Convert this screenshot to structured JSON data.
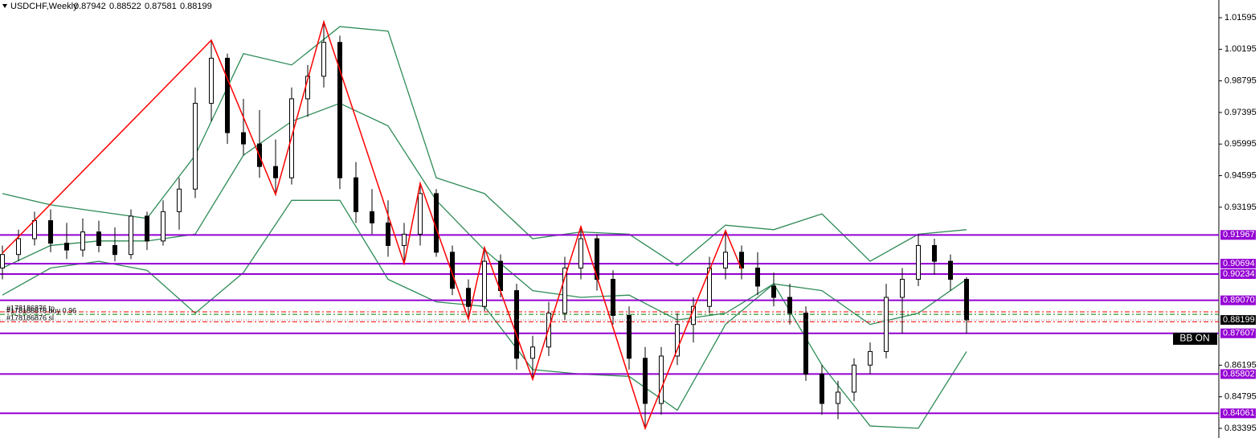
{
  "chart_data": {
    "type": "candlestick",
    "symbol": "USDCHF,Weekly",
    "quote": [
      0.87942,
      0.88522,
      0.87581,
      0.88199
    ],
    "ylim": [
      0.82968,
      1.02379
    ],
    "yticks": [
      1.01595,
      1.00195,
      0.98795,
      0.97395,
      0.95995,
      0.94595,
      0.93195,
      0.86195,
      0.84795,
      0.83395
    ],
    "ohlc": [
      [
        0.905,
        0.915,
        0.9,
        0.911
      ],
      [
        0.911,
        0.922,
        0.908,
        0.918
      ],
      [
        0.918,
        0.93,
        0.915,
        0.926
      ],
      [
        0.926,
        0.931,
        0.912,
        0.916
      ],
      [
        0.916,
        0.925,
        0.909,
        0.913
      ],
      [
        0.913,
        0.927,
        0.91,
        0.921
      ],
      [
        0.921,
        0.926,
        0.912,
        0.915
      ],
      [
        0.915,
        0.923,
        0.908,
        0.911
      ],
      [
        0.911,
        0.931,
        0.909,
        0.928
      ],
      [
        0.928,
        0.93,
        0.913,
        0.917
      ],
      [
        0.917,
        0.935,
        0.915,
        0.93
      ],
      [
        0.93,
        0.945,
        0.922,
        0.94
      ],
      [
        0.94,
        0.985,
        0.936,
        0.978
      ],
      [
        0.978,
        1.006,
        0.97,
        0.998
      ],
      [
        0.998,
        1.0,
        0.96,
        0.965
      ],
      [
        0.965,
        0.98,
        0.955,
        0.96
      ],
      [
        0.96,
        0.975,
        0.945,
        0.95
      ],
      [
        0.95,
        0.962,
        0.937,
        0.945
      ],
      [
        0.945,
        0.985,
        0.942,
        0.98
      ],
      [
        0.98,
        0.995,
        0.972,
        0.99
      ],
      [
        0.99,
        1.014,
        0.985,
        1.005
      ],
      [
        1.005,
        1.008,
        0.94,
        0.945
      ],
      [
        0.945,
        0.952,
        0.925,
        0.93
      ],
      [
        0.93,
        0.94,
        0.92,
        0.925
      ],
      [
        0.925,
        0.935,
        0.91,
        0.915
      ],
      [
        0.915,
        0.925,
        0.907,
        0.92
      ],
      [
        0.92,
        0.942,
        0.915,
        0.938
      ],
      [
        0.938,
        0.94,
        0.91,
        0.912
      ],
      [
        0.912,
        0.915,
        0.893,
        0.896
      ],
      [
        0.896,
        0.9,
        0.882,
        0.888
      ],
      [
        0.888,
        0.914,
        0.886,
        0.908
      ],
      [
        0.908,
        0.911,
        0.892,
        0.895
      ],
      [
        0.895,
        0.898,
        0.86,
        0.865
      ],
      [
        0.865,
        0.875,
        0.856,
        0.87
      ],
      [
        0.87,
        0.89,
        0.866,
        0.885
      ],
      [
        0.885,
        0.91,
        0.882,
        0.905
      ],
      [
        0.905,
        0.923,
        0.9,
        0.918
      ],
      [
        0.918,
        0.92,
        0.895,
        0.9
      ],
      [
        0.9,
        0.904,
        0.88,
        0.884
      ],
      [
        0.884,
        0.888,
        0.86,
        0.865
      ],
      [
        0.865,
        0.87,
        0.834,
        0.845
      ],
      [
        0.845,
        0.87,
        0.84,
        0.866
      ],
      [
        0.866,
        0.885,
        0.862,
        0.88
      ],
      [
        0.88,
        0.892,
        0.872,
        0.888
      ],
      [
        0.888,
        0.91,
        0.885,
        0.905
      ],
      [
        0.905,
        0.921,
        0.9,
        0.912
      ],
      [
        0.912,
        0.915,
        0.9,
        0.905
      ],
      [
        0.905,
        0.912,
        0.893,
        0.897
      ],
      [
        0.897,
        0.903,
        0.888,
        0.892
      ],
      [
        0.892,
        0.898,
        0.88,
        0.885
      ],
      [
        0.885,
        0.888,
        0.855,
        0.858
      ],
      [
        0.858,
        0.862,
        0.84,
        0.845
      ],
      [
        0.845,
        0.855,
        0.838,
        0.85
      ],
      [
        0.85,
        0.865,
        0.846,
        0.862
      ],
      [
        0.862,
        0.872,
        0.858,
        0.868
      ],
      [
        0.868,
        0.898,
        0.865,
        0.892
      ],
      [
        0.892,
        0.905,
        0.876,
        0.9
      ],
      [
        0.9,
        0.92,
        0.897,
        0.915
      ],
      [
        0.915,
        0.918,
        0.902,
        0.908
      ],
      [
        0.908,
        0.911,
        0.895,
        0.9
      ],
      [
        0.9,
        0.901,
        0.876,
        0.882
      ]
    ],
    "zigzag": {
      "color": "#ff0000",
      "x": [
        0,
        13,
        17,
        20,
        25,
        26,
        29,
        30,
        33,
        36,
        40,
        45,
        46
      ],
      "values": [
        0.91159,
        1.00598,
        0.9376,
        1.01417,
        0.90697,
        0.94258,
        0.88239,
        0.91409,
        0.85568,
        0.92335,
        0.83395,
        0.92157,
        0.90447
      ]
    },
    "bands": {
      "color": "#2e8b57",
      "x": [
        0,
        3,
        6,
        9,
        12,
        15,
        18,
        21,
        24,
        27,
        30,
        33,
        36,
        39,
        42,
        45,
        48,
        51,
        54,
        57,
        60
      ],
      "series": [
        {
          "values": [
            0.938,
            0.933,
            0.93,
            0.927,
            0.955,
            1.0,
            0.995,
            1.012,
            1.01,
            0.945,
            0.938,
            0.918,
            0.921,
            0.92,
            0.906,
            0.924,
            0.922,
            0.929,
            0.908,
            0.92,
            0.922
          ]
        },
        {
          "values": [
            0.905,
            0.915,
            0.917,
            0.917,
            0.92,
            0.955,
            0.97,
            0.978,
            0.968,
            0.935,
            0.913,
            0.895,
            0.892,
            0.893,
            0.882,
            0.885,
            0.898,
            0.895,
            0.88,
            0.885,
            0.9
          ]
        },
        {
          "values": [
            0.893,
            0.905,
            0.908,
            0.904,
            0.885,
            0.903,
            0.935,
            0.935,
            0.9,
            0.89,
            0.888,
            0.86,
            0.858,
            0.857,
            0.842,
            0.88,
            0.898,
            0.862,
            0.835,
            0.834,
            0.868
          ]
        }
      ]
    },
    "levels": {
      "color": "#9400d3",
      "values": [
        0.91967,
        0.90694,
        0.90234,
        {
          "value": 0.8907,
          "label": "0.89070"
        },
        0.87607,
        0.85802,
        0.84061
      ]
    },
    "orders": [
      {
        "label": "#178186876 tp",
        "value": 0.8856,
        "color": "#ff0000"
      },
      {
        "label": "#178186876 buy 0.96",
        "value": 0.8845,
        "color": "#008000"
      },
      {
        "label": "#178186876 sl",
        "value": 0.8812,
        "color": "#ff0000"
      }
    ],
    "current": 0.88199,
    "indicator_label": "BB ON"
  }
}
